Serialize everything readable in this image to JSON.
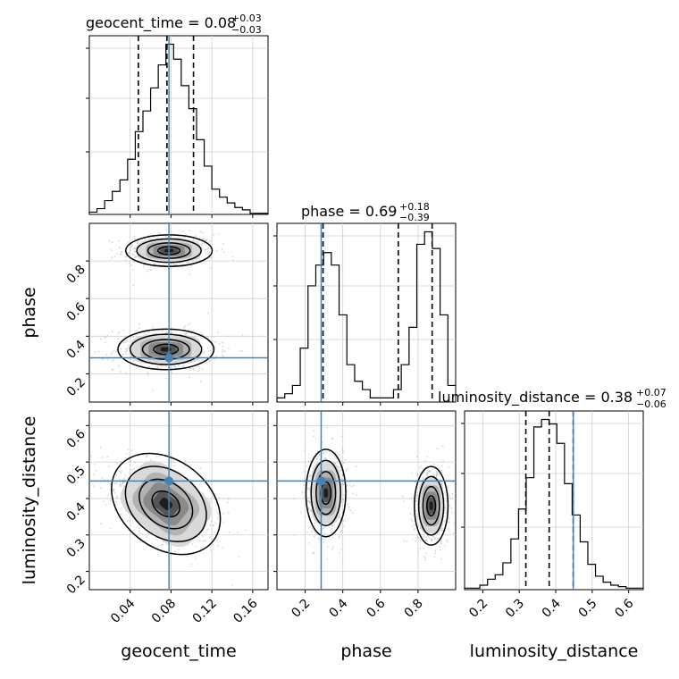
{
  "chart_data": {
    "type": "corner",
    "parameters": [
      "geocent_time",
      "phase",
      "luminosity_distance"
    ],
    "truths": [
      0.078,
      0.285,
      0.448
    ],
    "truth_color": "#4682b4",
    "titles": [
      {
        "param": "geocent_time",
        "median": "0.08",
        "plus": "+0.03",
        "minus": "−0.03"
      },
      {
        "param": "phase",
        "median": "0.69",
        "plus": "+0.18",
        "minus": "−0.39"
      },
      {
        "param": "luminosity_distance",
        "median": "0.38",
        "plus": "+0.07",
        "minus": "−0.06"
      }
    ],
    "quantiles": [
      [
        0.048,
        0.076,
        0.102
      ],
      [
        0.295,
        0.695,
        0.875
      ],
      [
        0.318,
        0.382,
        0.448
      ]
    ],
    "axis_labels": [
      "geocent_time",
      "phase",
      "luminosity_distance"
    ],
    "ranges": [
      [
        0.0,
        0.175
      ],
      [
        0.05,
        1.0
      ],
      [
        0.15,
        0.64
      ]
    ],
    "ticks": [
      [
        "0.04",
        "0.08",
        "0.12",
        "0.16"
      ],
      [
        "0.2",
        "0.4",
        "0.6",
        "0.8"
      ],
      [
        "0.2",
        "0.3",
        "0.4",
        "0.5",
        "0.6"
      ]
    ],
    "histograms": [
      {
        "param": "geocent_time",
        "bin_edges": [
          0.0,
          0.0075,
          0.015,
          0.0225,
          0.03,
          0.0375,
          0.045,
          0.0525,
          0.06,
          0.0675,
          0.075,
          0.0825,
          0.09,
          0.0975,
          0.105,
          0.1125,
          0.12,
          0.1275,
          0.135,
          0.1425,
          0.15,
          0.1575,
          0.165,
          0.175
        ],
        "counts": [
          2,
          5,
          12,
          20,
          30,
          48,
          72,
          90,
          110,
          130,
          148,
          135,
          112,
          92,
          65,
          42,
          22,
          15,
          10,
          6,
          4,
          1,
          1
        ]
      },
      {
        "param": "phase",
        "bin_edges": [
          0.05,
          0.0913,
          0.1326,
          0.1739,
          0.2152,
          0.2565,
          0.2978,
          0.3391,
          0.3804,
          0.4217,
          0.463,
          0.5043,
          0.5457,
          0.587,
          0.6283,
          0.6696,
          0.7109,
          0.7522,
          0.7935,
          0.8348,
          0.8761,
          0.9174,
          0.9587,
          1.0
        ],
        "counts": [
          1,
          2,
          4,
          13,
          28,
          33,
          36,
          33,
          21,
          9,
          5,
          3,
          1,
          1,
          1,
          3,
          9,
          18,
          38,
          41,
          37,
          21,
          4
        ]
      },
      {
        "param": "luminosity_distance",
        "bin_edges": [
          0.15,
          0.171,
          0.192,
          0.213,
          0.234,
          0.255,
          0.277,
          0.298,
          0.319,
          0.34,
          0.361,
          0.382,
          0.403,
          0.424,
          0.445,
          0.467,
          0.488,
          0.509,
          0.53,
          0.551,
          0.572,
          0.593,
          0.614,
          0.64
        ],
        "counts": [
          1,
          1,
          3,
          7,
          10,
          18,
          34,
          54,
          75,
          109,
          114,
          111,
          98,
          71,
          50,
          32,
          17,
          9,
          5,
          3,
          2,
          1,
          1
        ]
      }
    ],
    "modes_2d": [
      {
        "x": "geocent_time",
        "y": "phase",
        "modes": [
          {
            "center": [
              0.078,
              0.855
            ],
            "sigma": [
              0.018,
              0.035
            ]
          },
          {
            "center": [
              0.075,
              0.33
            ],
            "sigma": [
              0.02,
              0.045
            ]
          }
        ]
      },
      {
        "x": "geocent_time",
        "y": "luminosity_distance",
        "modes": [
          {
            "center": [
              0.075,
              0.385
            ],
            "sigma": [
              0.025,
              0.05
            ],
            "correlation": -0.55
          }
        ]
      },
      {
        "x": "phase",
        "y": "luminosity_distance",
        "modes": [
          {
            "center": [
              0.31,
              0.415
            ],
            "sigma": [
              0.045,
              0.05
            ]
          },
          {
            "center": [
              0.87,
              0.38
            ],
            "sigma": [
              0.038,
              0.045
            ]
          }
        ]
      }
    ]
  }
}
